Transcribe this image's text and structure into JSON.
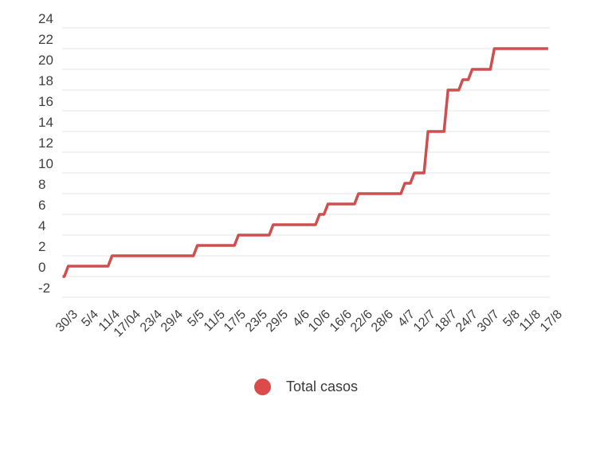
{
  "page": {
    "background": "#ffffff"
  },
  "legend": {
    "label": "Total casos",
    "marker_color": "#dc4b4b",
    "text_color": "#3a3a3a"
  },
  "axes": {
    "text_color": "#3f3f3f",
    "grid_color": "#e4e4e4"
  },
  "chart_data": {
    "type": "line",
    "style": "stepped cumulative count",
    "title": "",
    "xlabel": "",
    "ylabel": "",
    "x_tick_labels": [
      "30/3",
      "5/4",
      "11/4",
      "17/04",
      "23/4",
      "29/4",
      "5/5",
      "11/5",
      "17/5",
      "23/5",
      "29/5",
      "4/6",
      "10/6",
      "16/6",
      "22/6",
      "28/6",
      "4/7",
      "12/7",
      "18/7",
      "24/7",
      "30/7",
      "5/8",
      "11/8",
      "17/8"
    ],
    "y_tick_labels": [
      24,
      22,
      20,
      18,
      16,
      14,
      12,
      10,
      8,
      6,
      4,
      2,
      0,
      -2
    ],
    "ylim": [
      -2,
      24
    ],
    "grid": "horizontal only",
    "legend_position": "bottom-center",
    "series": [
      {
        "name": "Total casos",
        "color": "#cf4f4e",
        "step_points": [
          {
            "x": 0.0,
            "date": "30/3",
            "value": 0
          },
          {
            "x": 0.12,
            "date": "31/3",
            "value": 1
          },
          {
            "x": 2.2,
            "date": "12/4",
            "value": 2
          },
          {
            "x": 6.25,
            "date": "6/5",
            "value": 3
          },
          {
            "x": 8.2,
            "date": "18/5",
            "value": 4
          },
          {
            "x": 9.85,
            "date": "23/5",
            "value": 5
          },
          {
            "x": 12.05,
            "date": "10/6",
            "value": 6
          },
          {
            "x": 12.45,
            "date": "13/6",
            "value": 7
          },
          {
            "x": 13.9,
            "date": "21/6",
            "value": 8
          },
          {
            "x": 16.1,
            "date": "5/7",
            "value": 9
          },
          {
            "x": 16.55,
            "date": "8/7",
            "value": 10
          },
          {
            "x": 17.2,
            "date": "14/7",
            "value": 14
          },
          {
            "x": 18.15,
            "date": "19/7",
            "value": 18
          },
          {
            "x": 18.85,
            "date": "23/7",
            "value": 19
          },
          {
            "x": 19.3,
            "date": "26/7",
            "value": 20
          },
          {
            "x": 20.35,
            "date": "1/8",
            "value": 22
          },
          {
            "x": 23.0,
            "date": "17/8",
            "value": 22
          }
        ]
      }
    ]
  }
}
